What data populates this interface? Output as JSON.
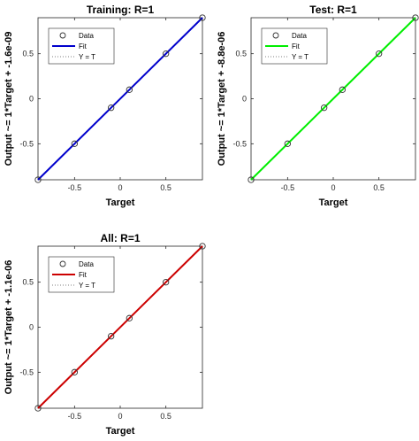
{
  "chart_data": [
    {
      "type": "scatter",
      "title": "Training: R=1",
      "xlabel": "Target",
      "ylabel": "Output ~= 1*Target + -1.6e-09",
      "xlim": [
        -0.9,
        0.9
      ],
      "ylim": [
        -0.9,
        0.9
      ],
      "xticks": [
        -0.5,
        0,
        0.5
      ],
      "xtick_labels": [
        "-0.5",
        "0",
        "0.5"
      ],
      "yticks": [
        -0.5,
        0,
        0.5
      ],
      "ytick_labels": [
        "-0.5",
        "0",
        "0.5"
      ],
      "grid": false,
      "legend_position": "top-left",
      "fit_color": "#0000cc",
      "series": [
        {
          "name": "Data",
          "kind": "markers",
          "x": [
            -0.9,
            -0.5,
            -0.1,
            0.1,
            0.5,
            0.9
          ],
          "y": [
            -0.9,
            -0.5,
            -0.1,
            0.1,
            0.5,
            0.9
          ]
        },
        {
          "name": "Fit",
          "kind": "line",
          "x": [
            -0.9,
            0.9
          ],
          "y": [
            -0.9,
            0.9
          ]
        },
        {
          "name": "Y = T",
          "kind": "dotted",
          "x": [
            -0.9,
            0.9
          ],
          "y": [
            -0.9,
            0.9
          ]
        }
      ]
    },
    {
      "type": "scatter",
      "title": "Test: R=1",
      "xlabel": "Target",
      "ylabel": "Output ~= 1*Target + -8.8e-06",
      "xlim": [
        -0.9,
        0.9
      ],
      "ylim": [
        -0.9,
        0.9
      ],
      "xticks": [
        -0.5,
        0,
        0.5
      ],
      "xtick_labels": [
        "-0.5",
        "0",
        "0.5"
      ],
      "yticks": [
        -0.5,
        0,
        0.5
      ],
      "ytick_labels": [
        "-0.5",
        "0",
        "0.5"
      ],
      "grid": false,
      "legend_position": "top-left",
      "fit_color": "#00ee00",
      "series": [
        {
          "name": "Data",
          "kind": "markers",
          "x": [
            -0.9,
            -0.5,
            -0.1,
            0.1,
            0.5,
            0.9
          ],
          "y": [
            -0.9,
            -0.5,
            -0.1,
            0.1,
            0.5,
            0.9
          ]
        },
        {
          "name": "Fit",
          "kind": "line",
          "x": [
            -0.9,
            0.9
          ],
          "y": [
            -0.9,
            0.9
          ]
        },
        {
          "name": "Y = T",
          "kind": "dotted",
          "x": [
            -0.9,
            0.9
          ],
          "y": [
            -0.9,
            0.9
          ]
        }
      ]
    },
    {
      "type": "scatter",
      "title": "All: R=1",
      "xlabel": "Target",
      "ylabel": "Output ~= 1*Target + -1.1e-06",
      "xlim": [
        -0.9,
        0.9
      ],
      "ylim": [
        -0.9,
        0.9
      ],
      "xticks": [
        -0.5,
        0,
        0.5
      ],
      "xtick_labels": [
        "-0.5",
        "0",
        "0.5"
      ],
      "yticks": [
        -0.5,
        0,
        0.5
      ],
      "ytick_labels": [
        "-0.5",
        "0",
        "0.5"
      ],
      "grid": false,
      "legend_position": "top-left",
      "fit_color": "#cc0000",
      "series": [
        {
          "name": "Data",
          "kind": "markers",
          "x": [
            -0.9,
            -0.5,
            -0.1,
            0.1,
            0.5,
            0.9
          ],
          "y": [
            -0.9,
            -0.5,
            -0.1,
            0.1,
            0.5,
            0.9
          ]
        },
        {
          "name": "Fit",
          "kind": "line",
          "x": [
            -0.9,
            0.9
          ],
          "y": [
            -0.9,
            0.9
          ]
        },
        {
          "name": "Y = T",
          "kind": "dotted",
          "x": [
            -0.9,
            0.9
          ],
          "y": [
            -0.9,
            0.9
          ]
        }
      ]
    }
  ]
}
